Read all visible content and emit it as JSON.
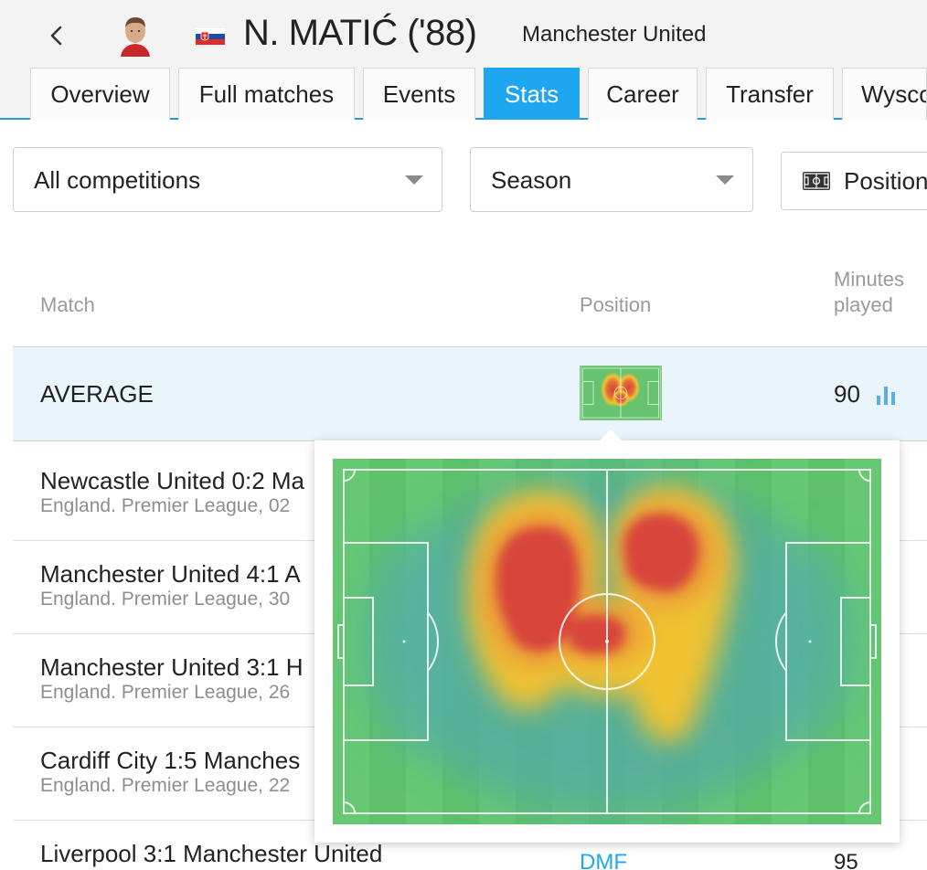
{
  "header": {
    "player_name": "N. MATIĆ ('88)",
    "team_name": "Manchester United",
    "flag": "slovakia-flag",
    "accent": "#1ea6f0"
  },
  "tabs": [
    {
      "label": "Overview",
      "active": false
    },
    {
      "label": "Full matches",
      "active": false
    },
    {
      "label": "Events",
      "active": false
    },
    {
      "label": "Stats",
      "active": true
    },
    {
      "label": "Career",
      "active": false
    },
    {
      "label": "Transfer",
      "active": false
    },
    {
      "label": "Wysco",
      "active": false
    }
  ],
  "filters": {
    "competition": "All competitions",
    "season": "Season",
    "position_button": "Position"
  },
  "table": {
    "columns": {
      "match": "Match",
      "position": "Position",
      "minutes_line1": "Minutes",
      "minutes_line2": "played"
    },
    "average": {
      "label": "AVERAGE",
      "minutes": "90"
    },
    "rows": [
      {
        "title": "Newcastle United 0:2 Ma",
        "sub": "England. Premier League, 02"
      },
      {
        "title": "Manchester United 4:1 A",
        "sub": "England. Premier League, 30"
      },
      {
        "title": "Manchester United 3:1 H",
        "sub": "England. Premier League, 26"
      },
      {
        "title": "Cardiff City 1:5 Manches",
        "sub": "England. Premier League, 22"
      },
      {
        "title": "Liverpool 3:1 Manchester United",
        "sub": "",
        "position": "DMF",
        "minutes": "95"
      }
    ]
  },
  "popup": {
    "type": "heatmap",
    "colors": {
      "pitch": "#5ec16a",
      "hot": "#d9473a",
      "warm": "#f0c233",
      "cool": "#4aa7a0"
    }
  }
}
